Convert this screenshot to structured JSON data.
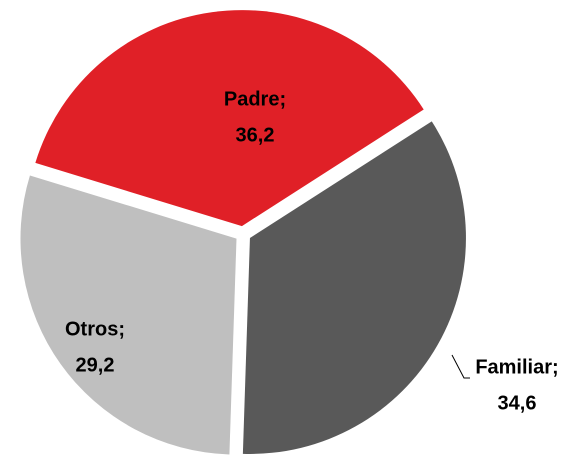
{
  "chart_data": {
    "type": "pie",
    "categories": [
      "Padre;",
      "Familiar;",
      "Otros;"
    ],
    "values": [
      36.2,
      34.6,
      29.2
    ],
    "value_labels": [
      "36,2",
      "34,6",
      "29,2"
    ],
    "colors": [
      "#e02027",
      "#595959",
      "#bfbfbf"
    ]
  }
}
